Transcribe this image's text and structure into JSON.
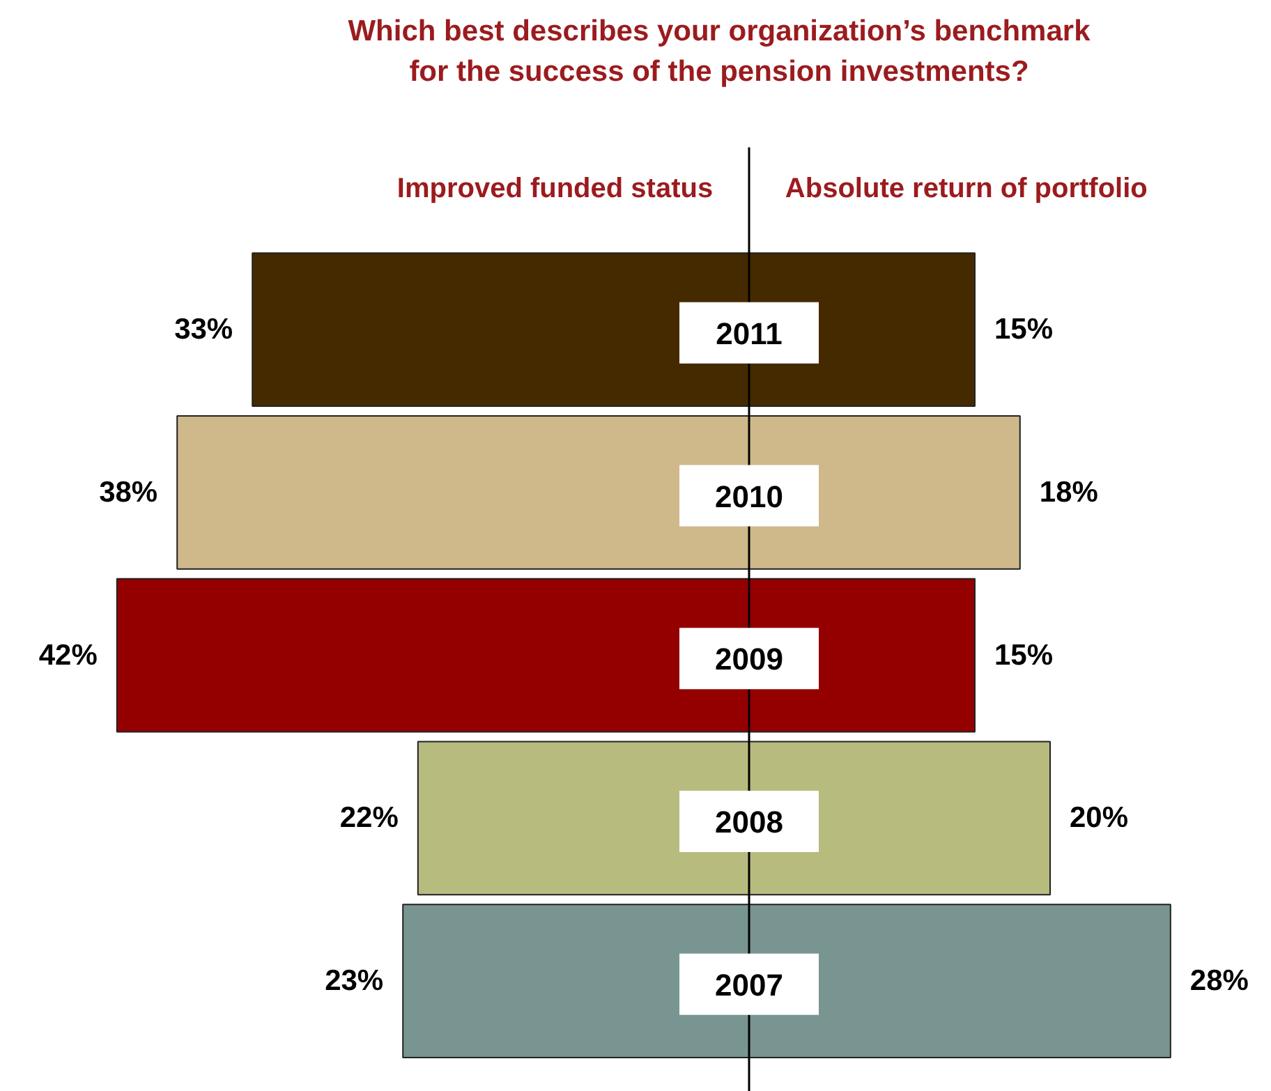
{
  "chart_data": [
    {
      "type": "bar",
      "orientation": "horizontal",
      "title": "Which best describes your organization’s benchmark\nfor the success of the pension investments?",
      "categories": [
        null,
        null,
        null,
        null,
        null
      ],
      "series": [
        {
          "name": "Improved funded status",
          "colors": [
            "#452a00",
            "#cfb88a",
            "#940000",
            "#b8bb7e",
            "#799592"
          ],
          "values": [
            33,
            38,
            42,
            22,
            23
          ],
          "value_labels": [
            "33%",
            "38%",
            "42%",
            "22%",
            "23%"
          ]
        }
      ]
    },
    {
      "type": "bar",
      "orientation": "horizontal",
      "categories": [
        "2011",
        "2010",
        "2009",
        "2008",
        "2007"
      ],
      "series": [
        {
          "name": "Absolute return of portfolio",
          "colors": [
            "#452a00",
            "#cfb88a",
            "#940000",
            "#b8bb7e",
            "#799592"
          ],
          "values": [
            15,
            18,
            15,
            20,
            28
          ],
          "value_labels": [
            "15%",
            "18%",
            "15%",
            "20%",
            "28%"
          ]
        }
      ]
    }
  ]
}
